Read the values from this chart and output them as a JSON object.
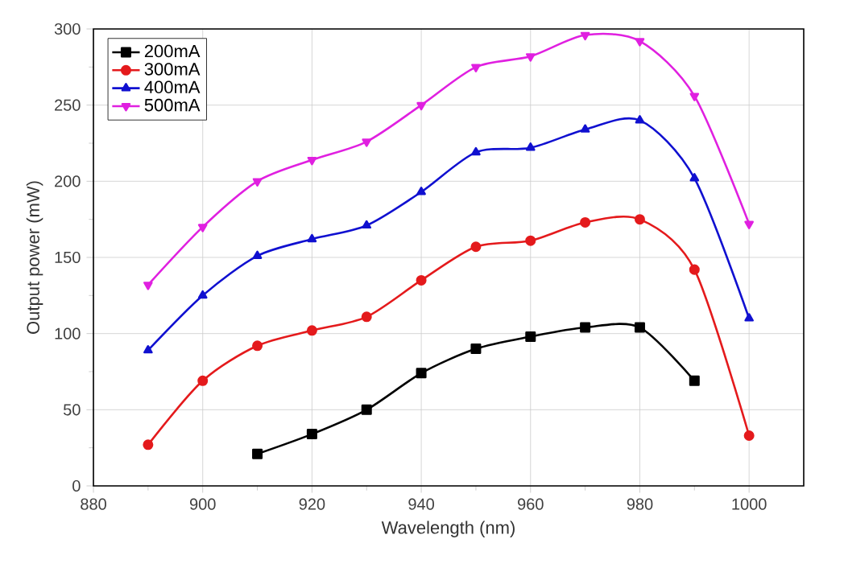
{
  "chart_data": {
    "type": "line",
    "xlabel": "Wavelength (nm)",
    "ylabel": "Output power (mW)",
    "xlim": [
      880,
      1010
    ],
    "xticks": [
      880,
      900,
      920,
      940,
      960,
      980,
      1000
    ],
    "ylim": [
      0,
      300
    ],
    "yticks": [
      0,
      50,
      100,
      150,
      200,
      250,
      300
    ],
    "grid": true,
    "legend": "top left",
    "series": [
      {
        "name": "200mA",
        "color": "#000000",
        "marker": "square",
        "x": [
          910,
          920,
          930,
          940,
          950,
          960,
          970,
          980,
          990
        ],
        "values": [
          21,
          34,
          50,
          74,
          90,
          98,
          104,
          104,
          69
        ]
      },
      {
        "name": "300mA",
        "color": "#e41a1c",
        "marker": "circle",
        "x": [
          890,
          900,
          910,
          920,
          930,
          940,
          950,
          960,
          970,
          980,
          990,
          1000
        ],
        "values": [
          27,
          69,
          92,
          102,
          111,
          135,
          157,
          161,
          173,
          175,
          142,
          33
        ]
      },
      {
        "name": "400mA",
        "color": "#1010d0",
        "marker": "triangle",
        "x": [
          890,
          900,
          910,
          920,
          930,
          940,
          950,
          960,
          970,
          980,
          990,
          1000
        ],
        "values": [
          89,
          125,
          151,
          162,
          171,
          193,
          219,
          222,
          234,
          240,
          202,
          110
        ]
      },
      {
        "name": "500mA",
        "color": "#e020e0",
        "marker": "triangle down",
        "x": [
          890,
          900,
          910,
          920,
          930,
          940,
          950,
          960,
          970,
          980,
          990,
          1000
        ],
        "values": [
          132,
          170,
          200,
          214,
          226,
          250,
          275,
          282,
          296,
          292,
          256,
          172
        ]
      }
    ]
  }
}
